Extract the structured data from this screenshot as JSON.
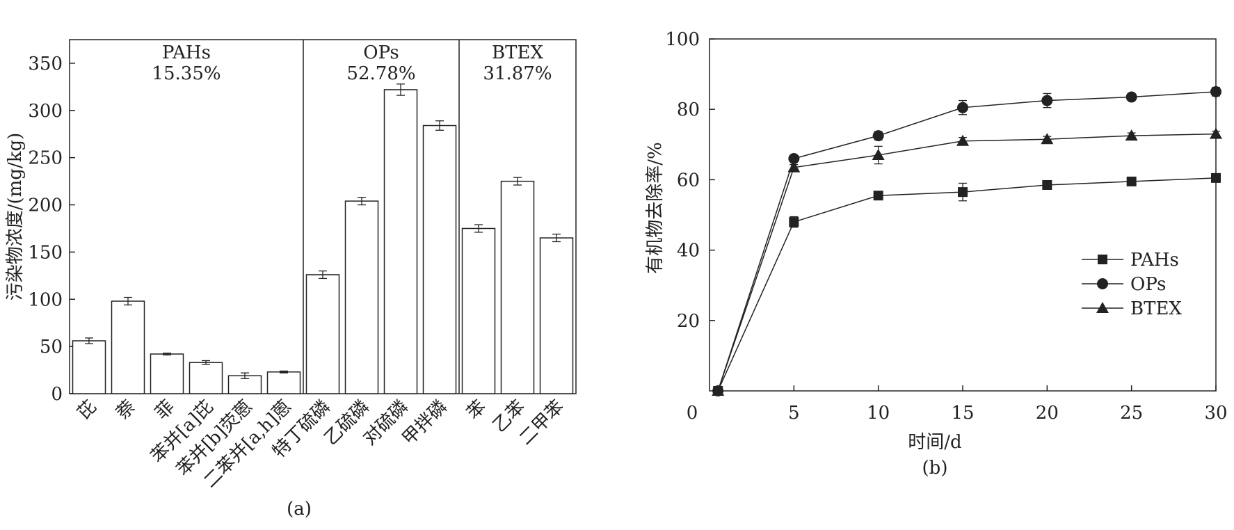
{
  "chart_data": [
    {
      "type": "bar",
      "panel_label": "(a)",
      "ylabel": "污染物浓度/(mg/kg)",
      "ylim": [
        0,
        375
      ],
      "yticks": [
        0,
        50,
        100,
        150,
        200,
        250,
        300,
        350
      ],
      "categories": [
        "芘",
        "萘",
        "菲",
        "苯并[a]芘",
        "苯并[b]荧蒽",
        "二苯并[a,h]蒽",
        "特丁硫磷",
        "乙硫磷",
        "对硫磷",
        "甲拌磷",
        "苯",
        "乙苯",
        "二甲苯"
      ],
      "values": [
        56,
        98,
        42,
        33,
        19,
        23,
        126,
        204,
        322,
        284,
        175,
        225,
        165
      ],
      "errors": [
        3,
        4,
        1,
        2,
        3,
        1,
        4,
        4,
        6,
        5,
        4,
        4,
        4
      ],
      "groups": [
        {
          "name": "PAHs",
          "percent": "15.35%",
          "start": 0,
          "end": 5
        },
        {
          "name": "OPs",
          "percent": "52.78%",
          "start": 6,
          "end": 9
        },
        {
          "name": "BTEX",
          "percent": "31.87%",
          "start": 10,
          "end": 12
        }
      ]
    },
    {
      "type": "line",
      "panel_label": "(b)",
      "xlabel": "时间/d",
      "ylabel": "有机物去除率/%",
      "xlim": [
        0,
        30
      ],
      "ylim": [
        0,
        100
      ],
      "xticks": [
        0,
        5,
        10,
        15,
        20,
        25,
        30
      ],
      "yticks": [
        20,
        40,
        60,
        80,
        100
      ],
      "x": [
        0,
        5,
        10,
        15,
        20,
        25,
        30
      ],
      "legend_position": "right",
      "series": [
        {
          "name": "PAHs",
          "marker": "square",
          "values": [
            0,
            48,
            55.5,
            56.5,
            58.5,
            59.5,
            60.5
          ],
          "errors": [
            0,
            1.5,
            0.8,
            2.5,
            0.8,
            0.8,
            0.8
          ]
        },
        {
          "name": "OPs",
          "marker": "circle",
          "values": [
            0,
            66,
            72.5,
            80.5,
            82.5,
            83.5,
            85
          ],
          "errors": [
            0,
            0.8,
            1.2,
            2,
            2,
            0.8,
            1.2
          ]
        },
        {
          "name": "BTEX",
          "marker": "triangle",
          "values": [
            0,
            63.5,
            67,
            71,
            71.5,
            72.5,
            73
          ],
          "errors": [
            0,
            0.8,
            2.5,
            1,
            0.8,
            0.8,
            0.8
          ]
        }
      ]
    }
  ]
}
